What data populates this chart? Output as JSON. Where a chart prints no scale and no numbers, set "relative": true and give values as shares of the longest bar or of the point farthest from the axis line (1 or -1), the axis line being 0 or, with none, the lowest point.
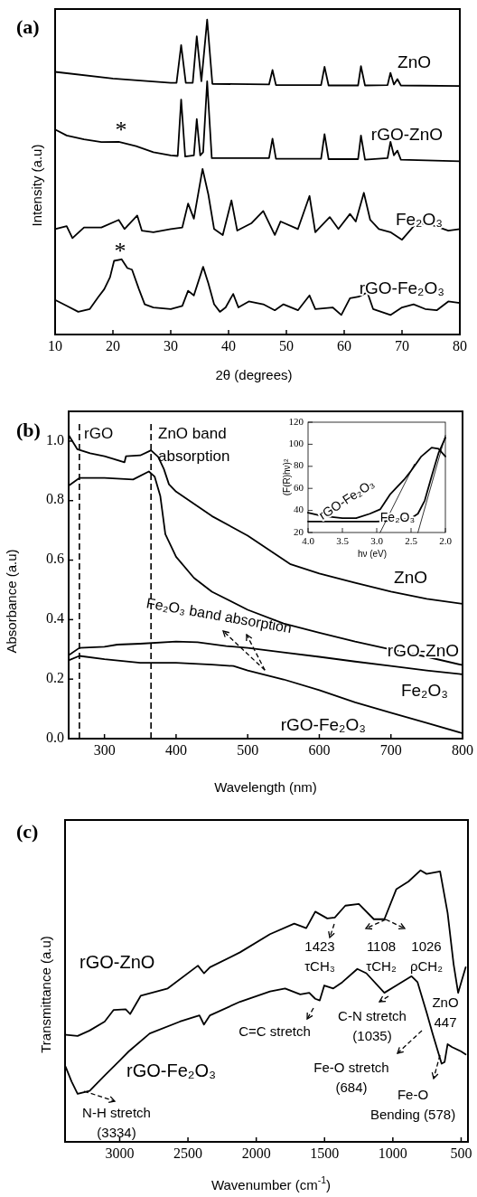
{
  "chart_data": [
    {
      "type": "line",
      "title": "(a)",
      "xlabel": "2θ (degrees)",
      "ylabel": "Intensity (a.u)",
      "relative": true,
      "tick_labels": "x",
      "xlim": [
        10,
        80
      ],
      "xticks": [
        10,
        20,
        30,
        40,
        50,
        60,
        70,
        80
      ],
      "annotations": [
        "*",
        "*"
      ],
      "series": [
        {
          "name": "ZnO",
          "color": "#000000",
          "x": [
            10,
            20,
            30,
            31,
            31.8,
            32.6,
            33.8,
            34.5,
            35.3,
            36.3,
            37.2,
            47,
            47.6,
            48.2,
            56,
            56.6,
            57.3,
            62.4,
            62.9,
            63.6,
            67.5,
            68,
            68.6,
            69.2,
            69.8,
            80
          ],
          "values": [
            0.834,
            0.813,
            0.799,
            0.799,
            0.919,
            0.799,
            0.799,
            0.947,
            0.804,
            1.0,
            0.796,
            0.794,
            0.84,
            0.792,
            0.792,
            0.85,
            0.791,
            0.791,
            0.852,
            0.791,
            0.792,
            0.831,
            0.794,
            0.811,
            0.791,
            0.789
          ]
        },
        {
          "name": "rGO-ZnO",
          "color": "#000000",
          "x": [
            10,
            12,
            15,
            18,
            21,
            24,
            27,
            30,
            31.2,
            31.8,
            32.5,
            34,
            34.5,
            35.1,
            35.6,
            36.3,
            37.1,
            47,
            47.6,
            48.2,
            56,
            56.6,
            57.3,
            62.4,
            62.9,
            63.6,
            67.5,
            68,
            68.6,
            69.2,
            69.8,
            80
          ],
          "values": [
            0.651,
            0.632,
            0.62,
            0.611,
            0.612,
            0.598,
            0.579,
            0.569,
            0.567,
            0.746,
            0.565,
            0.569,
            0.684,
            0.569,
            0.579,
            0.804,
            0.56,
            0.56,
            0.622,
            0.558,
            0.558,
            0.636,
            0.557,
            0.557,
            0.632,
            0.555,
            0.56,
            0.612,
            0.569,
            0.584,
            0.555,
            0.55
          ]
        },
        {
          "name": "Fe₂O₃",
          "color": "#000000",
          "x": [
            10,
            12,
            13,
            15,
            18,
            21,
            22,
            24.2,
            25,
            27,
            30,
            32,
            33,
            34,
            35.5,
            36.5,
            37.5,
            39,
            40.5,
            41.5,
            44,
            46,
            48,
            49,
            52,
            54,
            55,
            57.5,
            59,
            61,
            62,
            63.4,
            64.5,
            66,
            68,
            70,
            72.5,
            75,
            78,
            80
          ],
          "values": [
            0.335,
            0.344,
            0.306,
            0.34,
            0.34,
            0.364,
            0.335,
            0.378,
            0.33,
            0.325,
            0.335,
            0.34,
            0.416,
            0.368,
            0.526,
            0.445,
            0.335,
            0.316,
            0.426,
            0.33,
            0.354,
            0.392,
            0.316,
            0.359,
            0.335,
            0.44,
            0.325,
            0.373,
            0.335,
            0.383,
            0.359,
            0.45,
            0.364,
            0.335,
            0.325,
            0.301,
            0.354,
            0.349,
            0.33,
            0.335
          ]
        },
        {
          "name": "rGO-Fe₂O₃",
          "color": "#000000",
          "x": [
            10,
            12,
            14,
            16,
            17.5,
            18.5,
            19.5,
            20.2,
            21.5,
            22.5,
            23.3,
            24.5,
            25.5,
            27,
            30,
            32,
            33,
            34,
            35.6,
            36.5,
            37.5,
            38.5,
            39.5,
            40.8,
            41.7,
            43.5,
            46,
            48,
            49.5,
            52,
            54,
            55,
            58,
            59.5,
            61,
            62.5,
            64,
            65,
            68,
            70,
            72,
            74,
            76,
            78,
            80
          ],
          "values": [
            0.11,
            0.091,
            0.072,
            0.081,
            0.12,
            0.144,
            0.182,
            0.234,
            0.239,
            0.211,
            0.206,
            0.144,
            0.096,
            0.086,
            0.081,
            0.091,
            0.139,
            0.124,
            0.215,
            0.163,
            0.096,
            0.072,
            0.086,
            0.129,
            0.086,
            0.105,
            0.096,
            0.077,
            0.096,
            0.077,
            0.124,
            0.081,
            0.086,
            0.062,
            0.115,
            0.12,
            0.134,
            0.081,
            0.062,
            0.086,
            0.096,
            0.081,
            0.077,
            0.105,
            0.1
          ]
        }
      ]
    },
    {
      "type": "line",
      "title": "(b)",
      "xlabel": "Wavelength (nm)",
      "ylabel": "Absorbance (a.u)",
      "xlim": [
        250,
        800
      ],
      "ylim": [
        0,
        1.1
      ],
      "xticks": [
        300,
        400,
        500,
        600,
        700,
        800
      ],
      "yticks": [
        {
          "value": 0,
          "label": "0.0"
        },
        {
          "value": 0.2,
          "label": "0.2"
        },
        {
          "value": 0.4,
          "label": "0.4"
        },
        {
          "value": 0.6,
          "label": "0.6"
        },
        {
          "value": 0.8,
          "label": "0.8"
        },
        {
          "value": 1,
          "label": "1.0"
        }
      ],
      "ref_lines": [
        {
          "axis": "x",
          "value": 265,
          "label": "rGO",
          "line_style": "dashed"
        },
        {
          "axis": "x",
          "value": 365,
          "label": "ZnO band\nabsorption",
          "line_style": "dashed"
        }
      ],
      "annotations": [
        {
          "text": "Fe₂O₃ band absorption",
          "x": 524,
          "y": 0.23
        }
      ],
      "series": [
        {
          "name": "ZnO",
          "color": "#000000",
          "x": [
            250,
            262,
            280,
            300,
            328,
            330,
            350,
            365,
            375,
            383,
            390,
            400,
            450,
            500,
            560,
            600,
            650,
            700,
            750,
            800
          ],
          "values": [
            1.02,
            0.973,
            0.959,
            0.949,
            0.929,
            0.949,
            0.952,
            0.969,
            0.947,
            0.906,
            0.855,
            0.83,
            0.748,
            0.682,
            0.586,
            0.555,
            0.524,
            0.494,
            0.47,
            0.453
          ]
        },
        {
          "name": "rGO-ZnO",
          "color": "#000000",
          "x": [
            250,
            265,
            300,
            340,
            362,
            370,
            378,
            385,
            390,
            400,
            425,
            450,
            500,
            550,
            600,
            650,
            700,
            750,
            800
          ],
          "values": [
            0.85,
            0.876,
            0.876,
            0.871,
            0.898,
            0.881,
            0.815,
            0.687,
            0.662,
            0.611,
            0.54,
            0.494,
            0.433,
            0.387,
            0.356,
            0.326,
            0.3,
            0.275,
            0.247
          ]
        },
        {
          "name": "Fe₂O₃",
          "color": "#000000",
          "x": [
            250,
            265,
            300,
            318,
            350,
            400,
            430,
            470,
            500,
            550,
            600,
            650,
            700,
            750,
            800
          ],
          "values": [
            0.28,
            0.305,
            0.309,
            0.316,
            0.319,
            0.326,
            0.324,
            0.311,
            0.305,
            0.29,
            0.275,
            0.259,
            0.244,
            0.229,
            0.216
          ]
        },
        {
          "name": "rGO-Fe₂O₃",
          "color": "#000000",
          "x": [
            250,
            265,
            300,
            350,
            400,
            450,
            480,
            500,
            550,
            600,
            650,
            700,
            750,
            800
          ],
          "values": [
            0.263,
            0.278,
            0.267,
            0.255,
            0.255,
            0.249,
            0.244,
            0.229,
            0.199,
            0.163,
            0.122,
            0.087,
            0.053,
            0.018
          ]
        }
      ]
    },
    {
      "type": "line",
      "xlabel": "hν (eV)",
      "ylabel": "(F(R)hν)²",
      "xlim": [
        4.0,
        2.0
      ],
      "ylim": [
        20,
        120
      ],
      "xticks": [
        {
          "value": 4,
          "label": "4.0"
        },
        {
          "value": 3.5,
          "label": "3.5"
        },
        {
          "value": 3,
          "label": "3.0"
        },
        {
          "value": 2.5,
          "label": "2.5"
        },
        {
          "value": 2,
          "label": "2.0"
        }
      ],
      "yticks": [
        20,
        40,
        60,
        80,
        100,
        120
      ],
      "series": [
        {
          "name": "rGO-Fe₂O₃",
          "color": "#000000",
          "x": [
            4.0,
            3.8,
            3.5,
            3.3,
            3.1,
            2.95,
            2.8,
            2.6,
            2.5,
            2.35,
            2.2,
            2.1,
            2.0
          ],
          "values": [
            38,
            35,
            33,
            33,
            37,
            41,
            55,
            68,
            76,
            89,
            97,
            96,
            89
          ]
        },
        {
          "name": "Fe₂O₃",
          "color": "#000000",
          "x": [
            4.0,
            3.0,
            2.7,
            2.5,
            2.4,
            2.3,
            2.2,
            2.1,
            2.0
          ],
          "values": [
            30,
            30,
            31,
            33,
            37,
            49,
            71,
            92,
            106
          ]
        },
        {
          "color": "#000000",
          "x": [
            2.95,
            2.45
          ],
          "values": [
            20,
            82
          ]
        },
        {
          "color": "#000000",
          "x": [
            2.4,
            2.0
          ],
          "values": [
            20,
            108
          ]
        }
      ]
    },
    {
      "type": "line",
      "title": "(c)",
      "xlabel": "Wavenumber (cm$^{-1}$)",
      "ylabel": "Transmittance (a.u)",
      "relative": true,
      "tick_labels": "x",
      "xlim": [
        3400,
        450
      ],
      "xticks": [
        3000,
        2500,
        2000,
        1500,
        1000,
        500
      ],
      "annotations": [
        "1423\nτCH₃",
        "1108\nτCH₂",
        "1026\nρCH₂",
        "C=C stretch",
        "C-N stretch\n(1035)",
        "ZnO\n447",
        "Fe-O stretch\n(684)",
        "Fe-O\nBending (578)",
        "N-H stretch\n(3334)"
      ],
      "series": [
        {
          "name": "rGO-ZnO",
          "color": "#000000",
          "x": [
            3392,
            3308,
            3220,
            3110,
            3044,
            2956,
            2923,
            2846,
            2648,
            2427,
            2383,
            2339,
            2119,
            1899,
            1722,
            1634,
            1568,
            1480,
            1425,
            1348,
            1249,
            1139,
            1062,
            974,
            885,
            797,
            753,
            654,
            599,
            555,
            522,
            467
          ],
          "values": [
            0.394,
            0.39,
            0.41,
            0.443,
            0.486,
            0.488,
            0.471,
            0.538,
            0.565,
            0.649,
            0.621,
            0.643,
            0.698,
            0.765,
            0.804,
            0.787,
            0.848,
            0.823,
            0.826,
            0.87,
            0.876,
            0.82,
            0.82,
            0.931,
            0.959,
            1.0,
            0.987,
            0.996,
            0.843,
            0.654,
            0.549,
            0.643
          ]
        },
        {
          "name": "rGO-Fe₂O₃",
          "color": "#000000",
          "x": [
            3396,
            3352,
            3308,
            3220,
            3110,
            3000,
            2934,
            2780,
            2559,
            2416,
            2383,
            2339,
            2119,
            1899,
            1789,
            1678,
            1612,
            1568,
            1535,
            1502,
            1436,
            1370,
            1260,
            1194,
            1062,
            974,
            863,
            819,
            753,
            709,
            643,
            621,
            599,
            566,
            500,
            467
          ],
          "values": [
            0.277,
            0.222,
            0.177,
            0.188,
            0.244,
            0.299,
            0.333,
            0.399,
            0.443,
            0.466,
            0.432,
            0.466,
            0.516,
            0.554,
            0.565,
            0.543,
            0.549,
            0.527,
            0.521,
            0.576,
            0.565,
            0.588,
            0.637,
            0.621,
            0.549,
            0.576,
            0.61,
            0.588,
            0.477,
            0.399,
            0.288,
            0.294,
            0.36,
            0.349,
            0.333,
            0.322
          ]
        }
      ]
    }
  ]
}
